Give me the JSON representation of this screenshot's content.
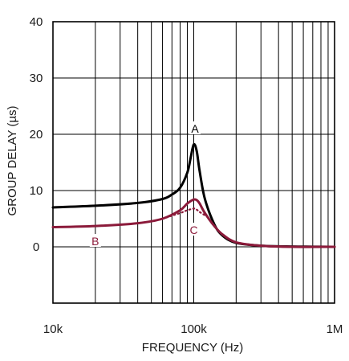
{
  "chart_data": {
    "type": "line",
    "title": "",
    "xlabel": "FREQUENCY (Hz)",
    "ylabel": "GROUP DELAY (µs)",
    "x_scale": "log",
    "xlim": [
      10000,
      1000000
    ],
    "ylim": [
      -10,
      40
    ],
    "x_tick_values": [
      10000,
      100000,
      1000000
    ],
    "x_tick_labels": [
      "10k",
      "100k",
      "1M"
    ],
    "y_tick_values": [
      0,
      10,
      20,
      30,
      40
    ],
    "y_tick_labels": [
      "0",
      "10",
      "20",
      "30",
      "40"
    ],
    "grid": true,
    "series": [
      {
        "name": "A",
        "color": "#000000",
        "style": "solid",
        "x": [
          10000,
          20000,
          40000,
          60000,
          70000,
          80000,
          90000,
          95000,
          100000,
          105000,
          110000,
          120000,
          140000,
          160000,
          200000,
          300000,
          500000,
          1000000
        ],
        "y": [
          7.0,
          7.3,
          7.8,
          8.5,
          9.3,
          10.5,
          13.2,
          15.8,
          18.2,
          17.0,
          13.5,
          8.5,
          4.0,
          2.0,
          0.7,
          0.2,
          0.05,
          0.0
        ]
      },
      {
        "name": "B",
        "color": "#8b1a3a",
        "style": "solid",
        "x": [
          10000,
          20000,
          40000,
          60000,
          80000,
          90000,
          100000,
          105000,
          110000,
          120000,
          140000,
          160000,
          200000,
          300000,
          500000,
          1000000
        ],
        "y": [
          3.5,
          3.7,
          4.2,
          5.0,
          6.5,
          7.7,
          8.4,
          8.3,
          7.7,
          6.0,
          3.7,
          2.2,
          0.8,
          0.2,
          0.0,
          0.0
        ]
      },
      {
        "name": "C",
        "color": "#8b1a3a",
        "style": "dotted",
        "x": [
          60000,
          80000,
          90000,
          100000,
          105000,
          110000,
          120000
        ],
        "y": [
          5.0,
          6.0,
          6.5,
          6.8,
          6.6,
          6.2,
          5.6
        ]
      }
    ],
    "annotations": [
      {
        "text": "A",
        "x": 102000,
        "y": 21
      },
      {
        "text": "B",
        "x": 20000,
        "y": 1
      },
      {
        "text": "C",
        "x": 100000,
        "y": 3
      }
    ]
  }
}
